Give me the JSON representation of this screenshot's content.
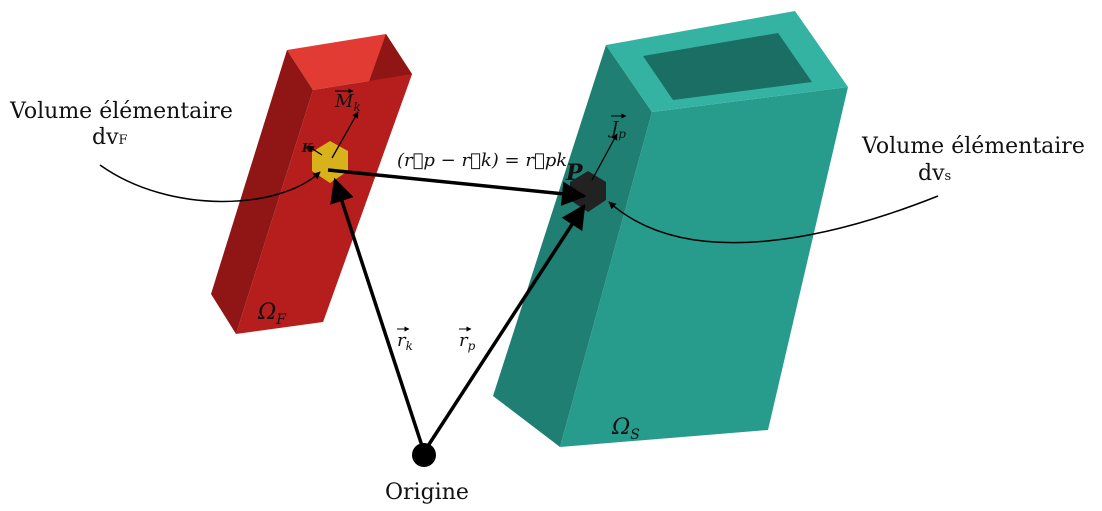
{
  "diagram": {
    "colors": {
      "red_bar_front": "#b51e1c",
      "red_bar_side": "#8f1614",
      "red_bar_top": "#e23b34",
      "teal_tube_front": "#279b8c",
      "teal_tube_side": "#1f7f73",
      "teal_tube_top": "#35b3a2",
      "teal_tube_inner": "#1a6e63",
      "elem_yellow": "#d7b21a",
      "elem_dark": "#222222",
      "point_p": "#c81e1e",
      "line": "#000000"
    },
    "labels": {
      "volume_left": "Volume élémentaire",
      "dv_left_main": "dv",
      "dv_left_sub": "F",
      "volume_right": "Volume élémentaire",
      "dv_right_main": "dv",
      "dv_right_sub": "s",
      "origin": "Origine",
      "omega_f": "Ω",
      "omega_f_sub": "F",
      "omega_s": "Ω",
      "omega_s_sub": "S",
      "point_k": "K",
      "point_p": "P",
      "vec_m": "M",
      "vec_m_sub": "k",
      "vec_j": "J",
      "vec_j_sub": "p",
      "vec_rk": "r",
      "vec_rk_sub": "k",
      "vec_rp": "r",
      "vec_rp_sub": "p",
      "formula": "(r⃗p − r⃗k) = r⃗pk"
    }
  }
}
